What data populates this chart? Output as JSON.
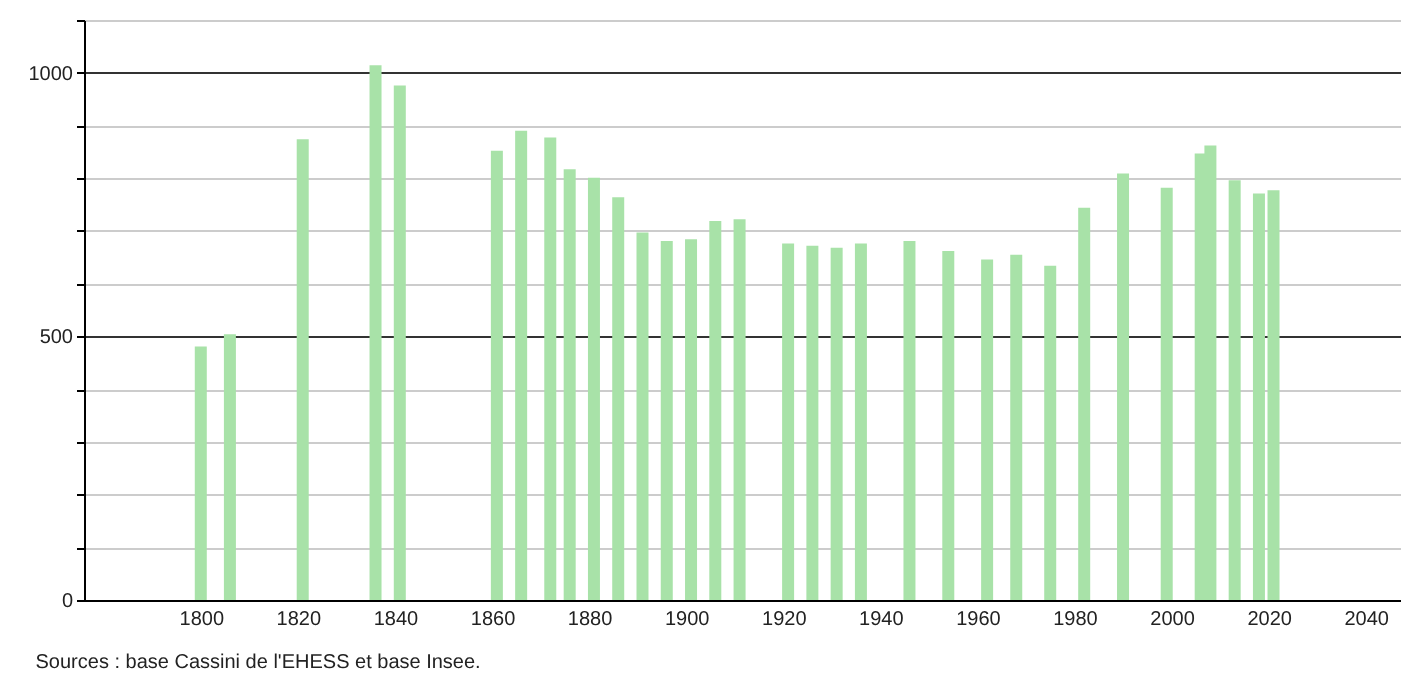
{
  "chart_data": {
    "type": "bar",
    "x": [
      1800,
      1806,
      1821,
      1836,
      1841,
      1861,
      1866,
      1872,
      1876,
      1881,
      1886,
      1891,
      1896,
      1901,
      1906,
      1911,
      1921,
      1926,
      1931,
      1936,
      1946,
      1954,
      1962,
      1968,
      1975,
      1982,
      1990,
      1999,
      2006,
      2008,
      2013,
      2018,
      2021
    ],
    "series": [
      {
        "color": "#a8e2a8",
        "values": [
          481,
          504,
          874,
          1014,
          976,
          852,
          890,
          877,
          817,
          801,
          764,
          697,
          681,
          684,
          719,
          722,
          676,
          672,
          668,
          676,
          681,
          662,
          646,
          655,
          634,
          744,
          809,
          782,
          847,
          862,
          796,
          771,
          777
        ]
      }
    ],
    "xlim": [
      1778,
      2045
    ],
    "xticks": [
      1800,
      1820,
      1840,
      1860,
      1880,
      1900,
      1920,
      1940,
      1960,
      1980,
      2000,
      2020,
      2040
    ],
    "ylim": [
      0,
      1100
    ],
    "yticks": [
      0,
      {
        "value": 100,
        "label": null
      },
      {
        "value": 200,
        "label": null
      },
      {
        "value": 300,
        "label": null
      },
      {
        "value": 400,
        "label": null
      },
      500,
      {
        "value": 600,
        "label": null
      },
      {
        "value": 700,
        "label": null
      },
      {
        "value": 800,
        "label": null
      },
      {
        "value": 900,
        "label": null
      },
      1000,
      {
        "value": 1100,
        "label": null
      }
    ],
    "grid": "y",
    "annotations": [
      "Sources : base Cassini de l'EHESS et base Insee."
    ]
  }
}
